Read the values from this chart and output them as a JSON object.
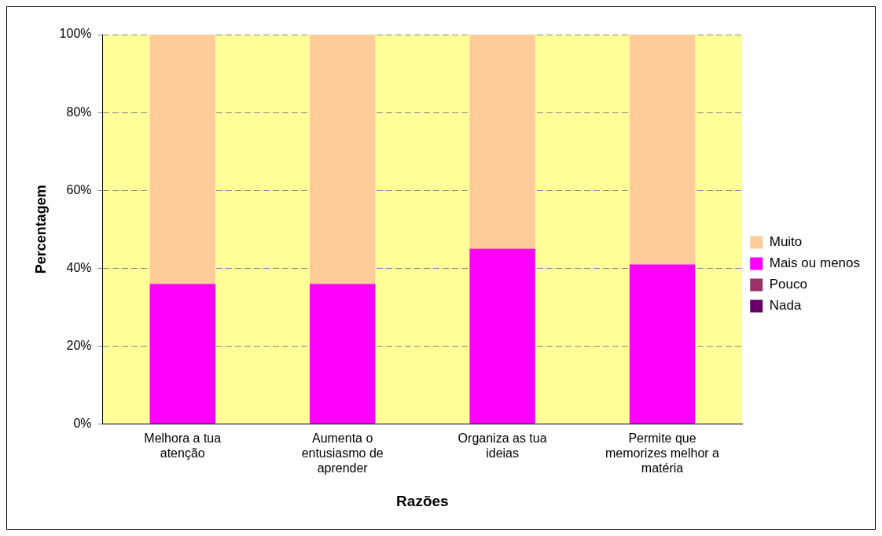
{
  "chart_data": {
    "type": "bar",
    "stacked": true,
    "xlabel": "Razões",
    "ylabel": "Percentagem",
    "categories": [
      "Melhora a tua atenção",
      "Aumenta o entusiasmo de aprender",
      "Organiza as tua ideias",
      "Permite que memorizes melhor a matéria"
    ],
    "series": [
      {
        "name": "Nada",
        "color": "#660066",
        "values": [
          0,
          0,
          0,
          0
        ]
      },
      {
        "name": "Pouco",
        "color": "#993366",
        "values": [
          0,
          0,
          0,
          0
        ]
      },
      {
        "name": "Mais ou menos",
        "color": "#ff00ff",
        "values": [
          36,
          36,
          45,
          41
        ]
      },
      {
        "name": "Muito",
        "color": "#ffcc99",
        "values": [
          64,
          64,
          55,
          59
        ]
      }
    ],
    "ylim": [
      0,
      100
    ],
    "yticks": [
      {
        "value": 0,
        "label": "0%"
      },
      {
        "value": 20,
        "label": "20%"
      },
      {
        "value": 40,
        "label": "40%"
      },
      {
        "value": 60,
        "label": "60%"
      },
      {
        "value": 80,
        "label": "80%"
      },
      {
        "value": 100,
        "label": "100%"
      }
    ],
    "grid": "y",
    "legend": "right"
  }
}
